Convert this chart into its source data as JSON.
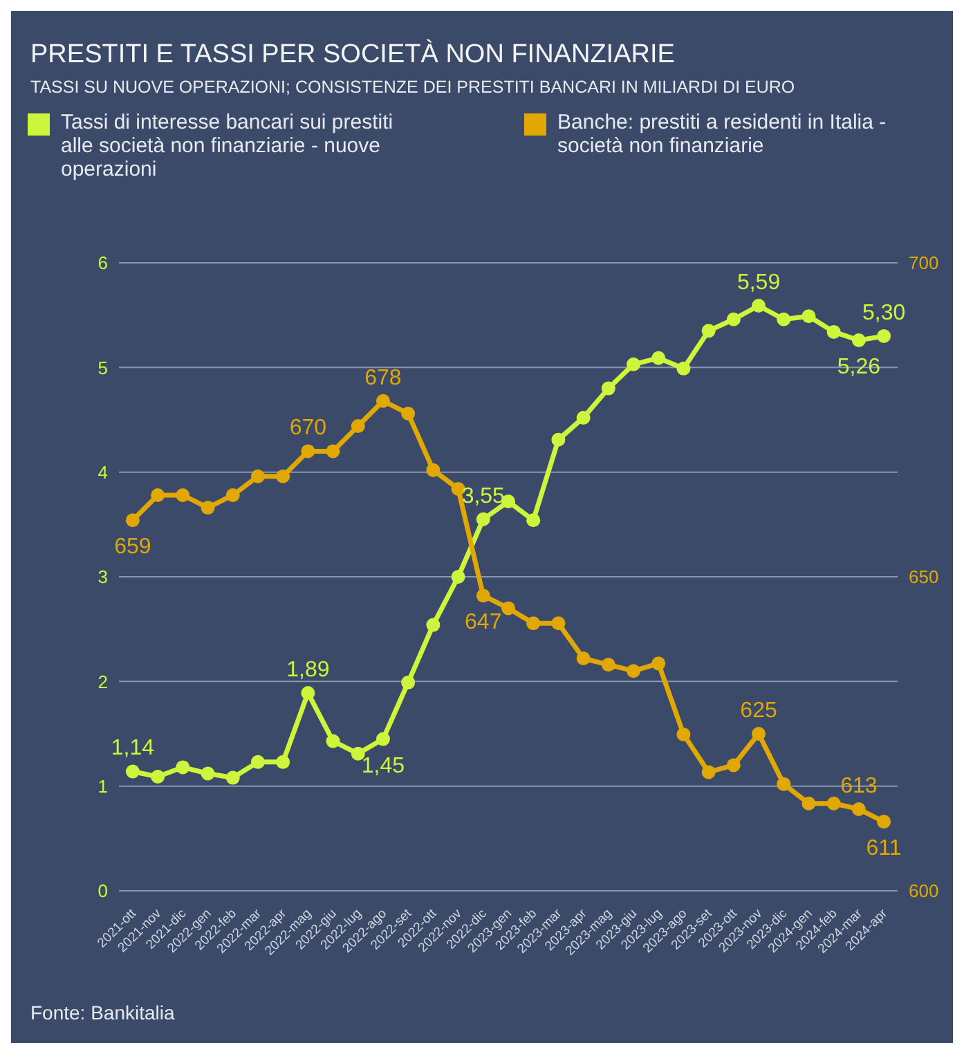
{
  "chart_data": {
    "type": "line",
    "title": "PRESTITI E TASSI PER SOCIETÀ NON FINANZIARIE",
    "subtitle": "TASSI SU NUOVE OPERAZIONI; CONSISTENZE DEI PRESTITI BANCARI IN MILIARDI DI EURO",
    "categories": [
      "2021-ott",
      "2021-nov",
      "2021-dic",
      "2022-gen",
      "2022-feb",
      "2022-mar",
      "2022-apr",
      "2022-mag",
      "2022-giu",
      "2022-lug",
      "2022-ago",
      "2022-set",
      "2022-ott",
      "2022-nov",
      "2022-dic",
      "2023-gen",
      "2023-feb",
      "2023-mar",
      "2023-apr",
      "2023-mag",
      "2023-giu",
      "2023-lug",
      "2023-ago",
      "2023-set",
      "2023-ott",
      "2023-nov",
      "2023-dic",
      "2024-gen",
      "2024-feb",
      "2024-mar",
      "2024-apr"
    ],
    "series": [
      {
        "name": "Tassi di interesse bancari sui prestiti alle società non finanziarie - nuove operazioni",
        "color": "#ccf53b",
        "values": [
          1.14,
          1.09,
          1.18,
          1.12,
          1.08,
          1.23,
          1.23,
          1.89,
          1.43,
          1.31,
          1.45,
          1.99,
          2.54,
          3.0,
          3.55,
          3.72,
          3.54,
          4.31,
          4.52,
          4.8,
          5.03,
          5.09,
          4.99,
          5.35,
          5.46,
          5.59,
          5.46,
          5.49,
          5.34,
          5.26,
          5.3
        ],
        "value_labels": [
          "1,14",
          null,
          null,
          null,
          null,
          null,
          null,
          "1,89",
          null,
          null,
          "1,45",
          null,
          null,
          null,
          "3,55",
          null,
          null,
          null,
          null,
          null,
          null,
          null,
          null,
          null,
          null,
          "5,59",
          null,
          null,
          null,
          "5,26",
          "5,30"
        ]
      },
      {
        "name": "Banche: prestiti a residenti in Italia - società non finanziarie",
        "color": "#e0a800",
        "axis": "y2",
        "values": [
          659,
          663,
          663,
          661,
          663,
          666,
          666,
          670,
          670,
          674,
          678,
          676,
          667,
          664,
          647,
          645,
          642.6,
          642.6,
          637,
          636,
          635,
          636.2,
          624.9,
          618.9,
          620,
          625,
          617,
          613.9,
          613.9,
          613,
          611
        ],
        "value_labels": [
          "659",
          null,
          null,
          null,
          null,
          null,
          null,
          "670",
          null,
          null,
          "678",
          null,
          null,
          null,
          "647",
          null,
          null,
          null,
          null,
          null,
          null,
          null,
          null,
          null,
          null,
          "625",
          null,
          null,
          null,
          "613",
          "611"
        ]
      }
    ],
    "ylim": [
      0,
      6
    ],
    "yticks": [
      0,
      1,
      2,
      3,
      4,
      5,
      6
    ],
    "y2lim": [
      600,
      700
    ],
    "y2ticks": [
      600,
      650,
      700
    ],
    "grid": "y",
    "legend": "top",
    "marker": "circle",
    "line_style": "solid",
    "annotations": [
      "Fonte: Bankitalia"
    ]
  }
}
